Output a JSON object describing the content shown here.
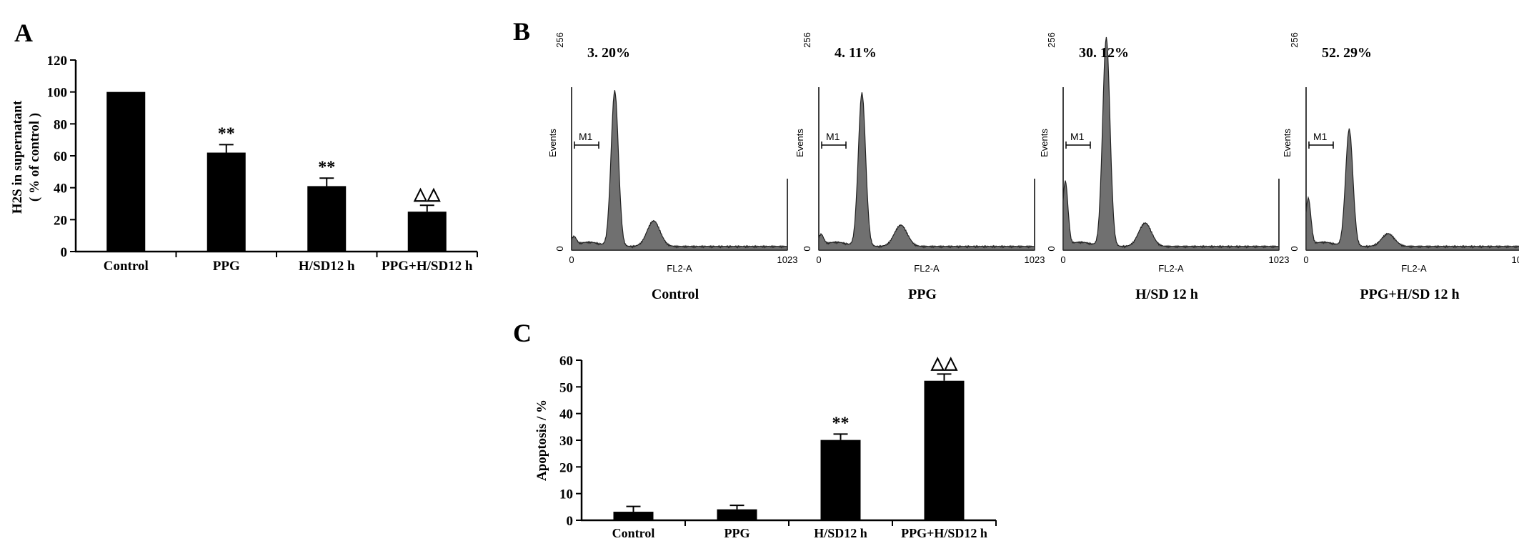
{
  "panels": {
    "A": {
      "letter": "A"
    },
    "B": {
      "letter": "B"
    },
    "C": {
      "letter": "C"
    }
  },
  "chart_data": [
    {
      "id": "A",
      "type": "bar",
      "ylabel_line1": "H2S in supernatant",
      "ylabel_line2": "( % of control )",
      "categories": [
        "Control",
        "PPG",
        "H/SD12 h",
        "PPG+H/SD12 h"
      ],
      "values": [
        100,
        62,
        41,
        25
      ],
      "errors": [
        0,
        5,
        5,
        4
      ],
      "annotations": [
        "",
        "**",
        "**",
        "△△"
      ],
      "ylim": [
        0,
        120
      ],
      "yticks": [
        "0",
        "20",
        "40",
        "60",
        "80",
        "100",
        "120"
      ],
      "bar_color": "#000000"
    },
    {
      "id": "B",
      "type": "histogram",
      "histograms": [
        {
          "percent": "3. 20%",
          "caption": "Control",
          "g1_peak": 0.73,
          "g2_peak": 0.12,
          "sub_g1_peak": 0.04
        },
        {
          "percent": "4. 11%",
          "caption": "PPG",
          "g1_peak": 0.72,
          "g2_peak": 0.1,
          "sub_g1_peak": 0.05
        },
        {
          "percent": "30. 12%",
          "caption": "H/SD 12 h",
          "g1_peak": 0.98,
          "g2_peak": 0.11,
          "sub_g1_peak": 0.3
        },
        {
          "percent": "52. 29%",
          "caption": "PPG+H/SD 12 h",
          "g1_peak": 0.55,
          "g2_peak": 0.06,
          "sub_g1_peak": 0.22
        }
      ],
      "ylabel": "Events",
      "xlabel": "FL2-A",
      "x_tick_min": "0",
      "x_tick_max": "1023",
      "y_tick_min": "0",
      "y_tick_max": "256",
      "marker_label": "M1",
      "fill_color": "#707070"
    },
    {
      "id": "C",
      "type": "bar",
      "ylabel": "Apoptosis / %",
      "categories": [
        "Control",
        "PPG",
        "H/SD12 h",
        "PPG+H/SD12 h"
      ],
      "values": [
        3.2,
        4.1,
        30.1,
        52.3
      ],
      "errors": [
        2,
        1.5,
        2.2,
        2.5
      ],
      "annotations": [
        "",
        "",
        "**",
        "△△"
      ],
      "ylim": [
        0,
        60
      ],
      "yticks": [
        "0",
        "10",
        "20",
        "30",
        "40",
        "50",
        "60"
      ],
      "bar_color": "#000000"
    }
  ]
}
